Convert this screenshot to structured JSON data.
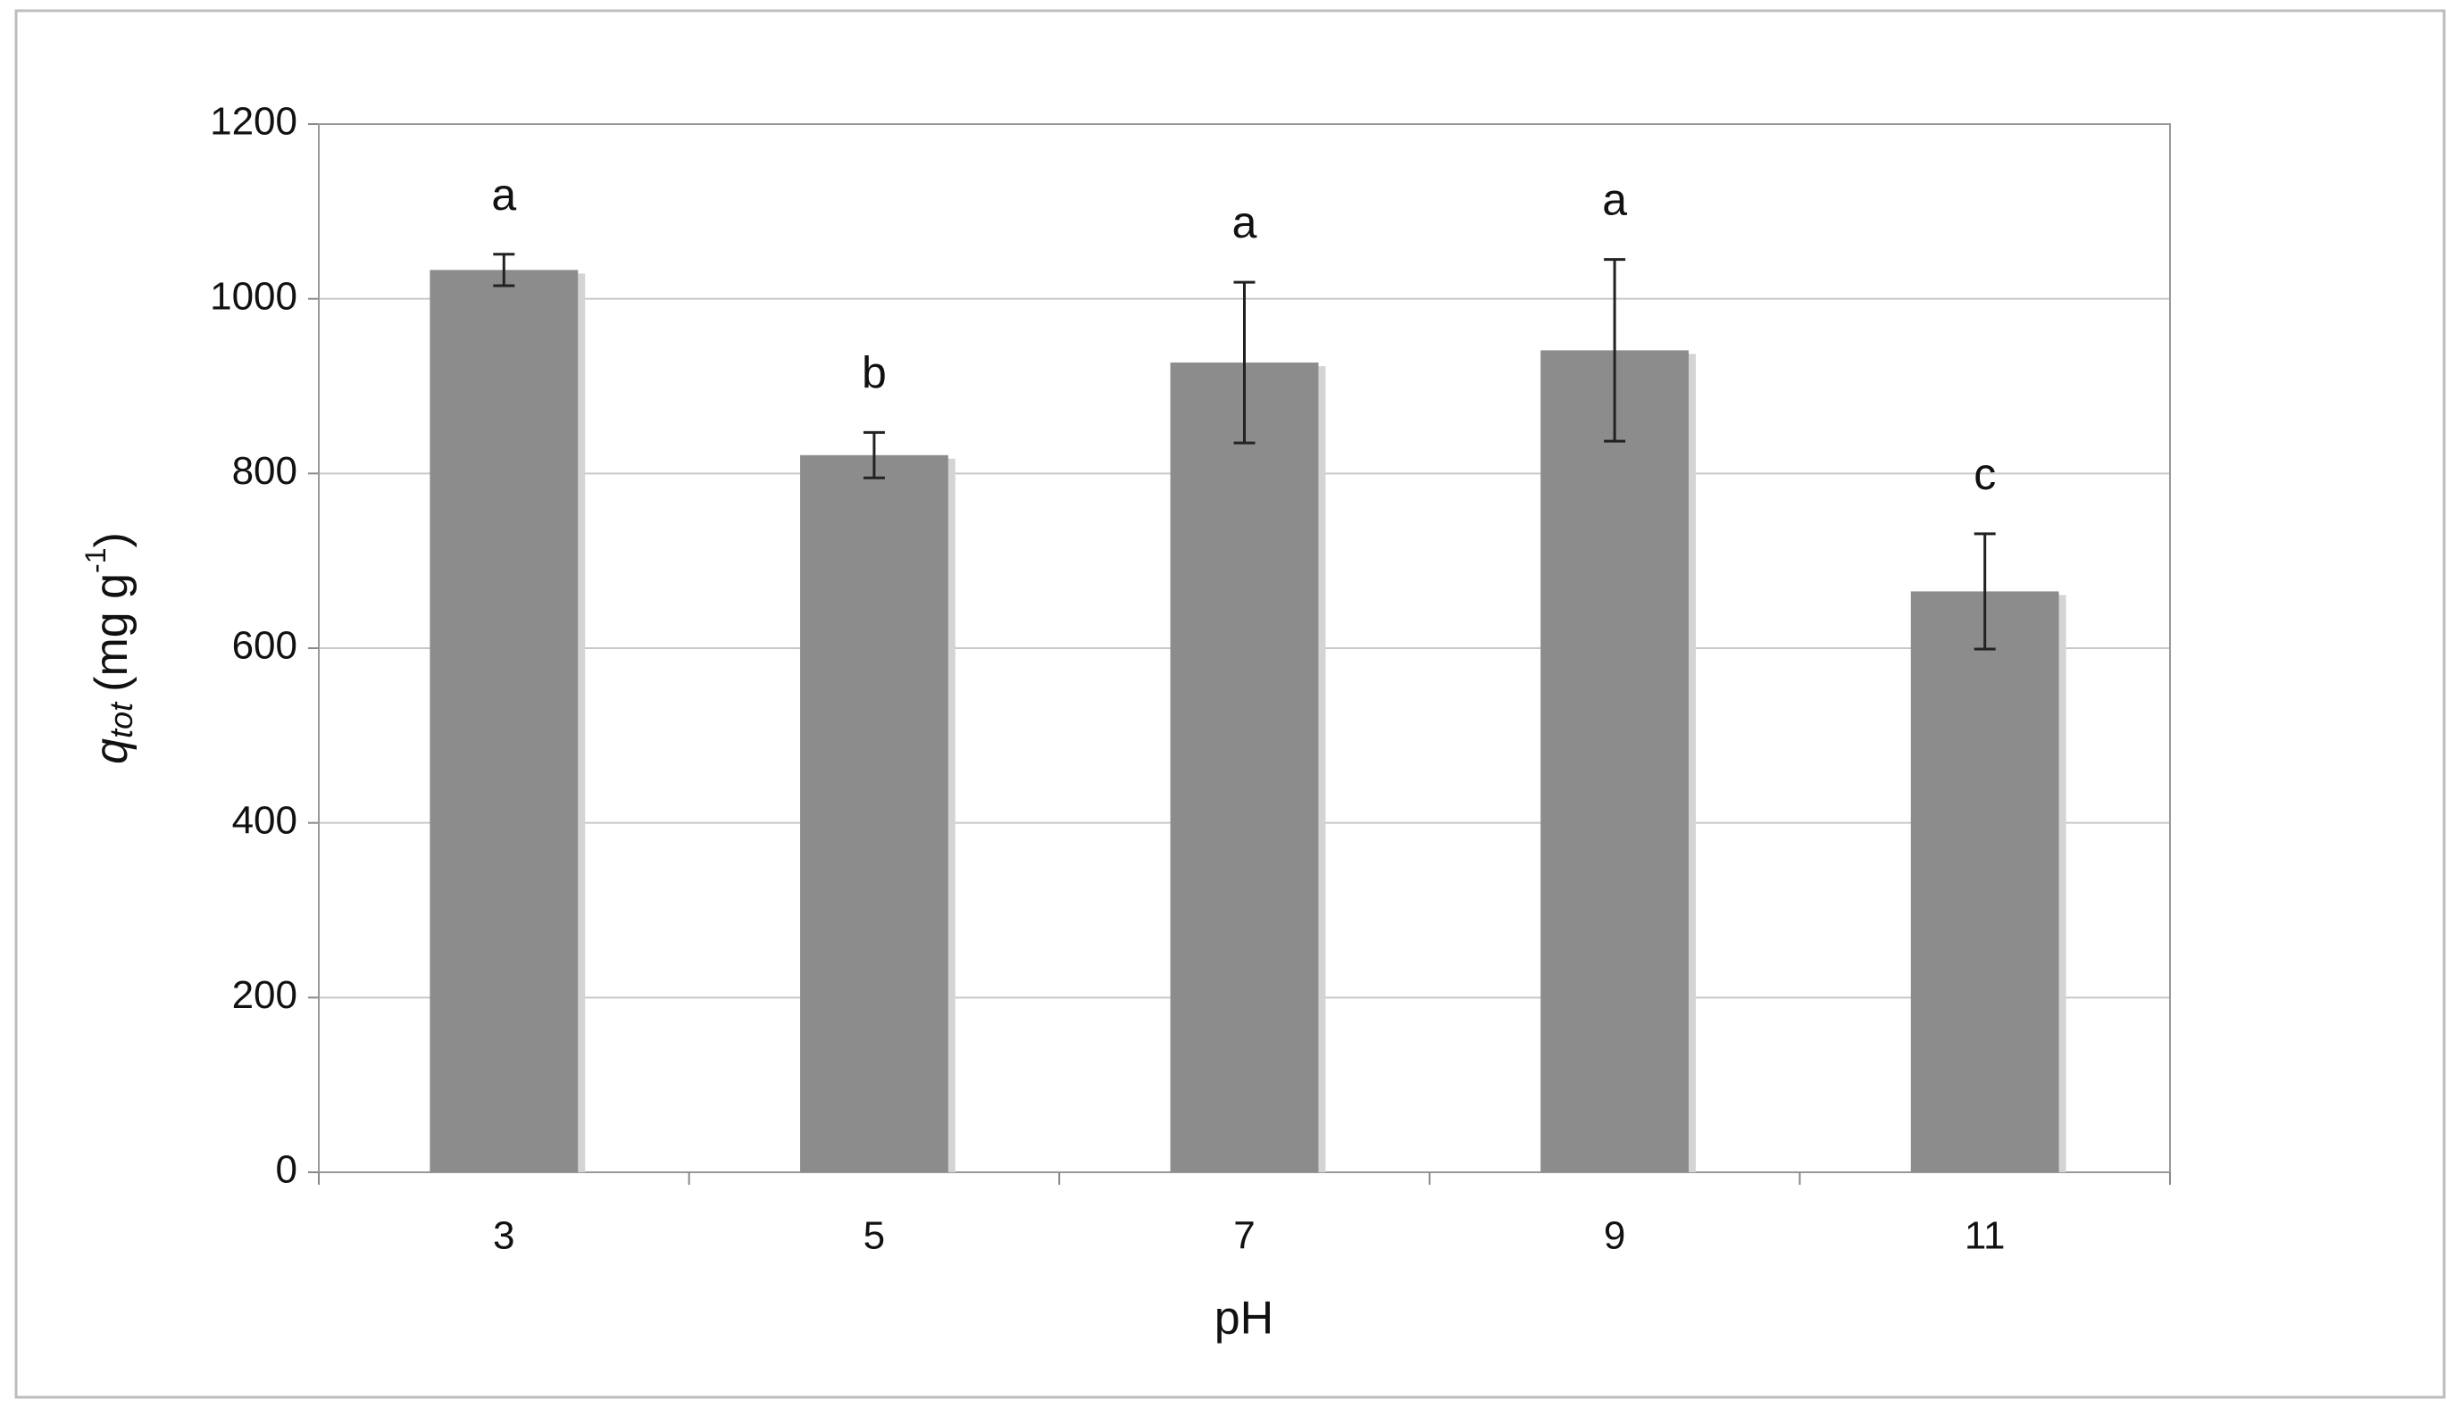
{
  "chart_data": {
    "type": "bar",
    "x_label": "pH",
    "y_label": {
      "var": "q",
      "sub": "tot",
      "unit": "(mg g",
      "sup": "-1",
      "close": ")"
    },
    "categories": [
      "3",
      "5",
      "7",
      "9",
      "11"
    ],
    "values": [
      1033,
      821,
      927,
      941,
      665
    ],
    "errors": [
      18,
      26,
      92,
      104,
      66
    ],
    "annotations": [
      "a",
      "b",
      "a",
      "a",
      "c"
    ],
    "color": "#8c8c8c",
    "ylim": [
      0,
      1200
    ],
    "yticks": [
      0,
      200,
      400,
      600,
      800,
      1000,
      1200
    ],
    "grid": true
  }
}
